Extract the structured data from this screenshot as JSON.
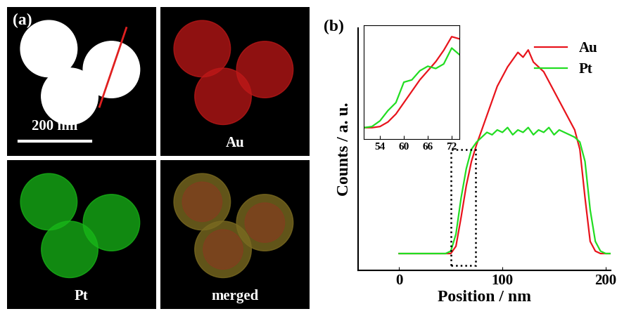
{
  "panel_a": {
    "label": "(a)",
    "scale_bar": "200 nm",
    "maps": [
      "Au",
      "Pt",
      "merged"
    ]
  },
  "chart_data": [
    {
      "type": "line",
      "title": "(b)",
      "x_label": "Position / nm",
      "y_label": "Counts / a. u.",
      "x": [
        0,
        5,
        10,
        15,
        20,
        25,
        30,
        35,
        40,
        45,
        50,
        55,
        60,
        65,
        70,
        75,
        80,
        85,
        90,
        95,
        100,
        105,
        110,
        115,
        120,
        125,
        130,
        135,
        140,
        145,
        150,
        155,
        160,
        165,
        170,
        175,
        180,
        185,
        190,
        195,
        200,
        205
      ],
      "series": [
        {
          "name": "Au",
          "color": "#e8141c",
          "values": [
            0.07,
            0.07,
            0.07,
            0.07,
            0.07,
            0.07,
            0.07,
            0.07,
            0.07,
            0.07,
            0.07,
            0.1,
            0.22,
            0.35,
            0.45,
            0.52,
            0.58,
            0.64,
            0.7,
            0.76,
            0.8,
            0.84,
            0.87,
            0.9,
            0.88,
            0.91,
            0.86,
            0.84,
            0.82,
            0.78,
            0.74,
            0.7,
            0.66,
            0.62,
            0.58,
            0.5,
            0.3,
            0.12,
            0.08,
            0.07,
            0.07,
            0.07
          ]
        },
        {
          "name": "Pt",
          "color": "#22dd22",
          "values": [
            0.07,
            0.07,
            0.07,
            0.07,
            0.07,
            0.07,
            0.07,
            0.07,
            0.07,
            0.07,
            0.08,
            0.15,
            0.3,
            0.42,
            0.5,
            0.53,
            0.55,
            0.57,
            0.56,
            0.58,
            0.57,
            0.59,
            0.56,
            0.58,
            0.57,
            0.59,
            0.56,
            0.58,
            0.57,
            0.59,
            0.56,
            0.58,
            0.57,
            0.56,
            0.55,
            0.53,
            0.45,
            0.25,
            0.12,
            0.08,
            0.07,
            0.07
          ]
        }
      ],
      "xlim": [
        -40,
        205
      ],
      "xticks": [
        0,
        100,
        200
      ],
      "ylim": [
        0,
        1
      ],
      "tick_labels": "x",
      "legend": "upper right"
    },
    {
      "type": "line",
      "x": [
        50,
        52,
        54,
        56,
        58,
        60,
        62,
        64,
        66,
        68,
        70,
        72,
        74
      ],
      "series": [
        {
          "name": "Au",
          "color": "#e8141c",
          "values": [
            0.1,
            0.1,
            0.11,
            0.15,
            0.22,
            0.32,
            0.42,
            0.52,
            0.6,
            0.68,
            0.78,
            0.9,
            0.88
          ]
        },
        {
          "name": "Pt",
          "color": "#22dd22",
          "values": [
            0.1,
            0.11,
            0.16,
            0.25,
            0.32,
            0.5,
            0.52,
            0.6,
            0.64,
            0.62,
            0.66,
            0.8,
            0.74
          ]
        }
      ],
      "xlim": [
        50,
        74
      ],
      "xticks": [
        54,
        60,
        66,
        72
      ],
      "ylim": [
        0,
        1
      ],
      "tick_labels": "x"
    }
  ]
}
